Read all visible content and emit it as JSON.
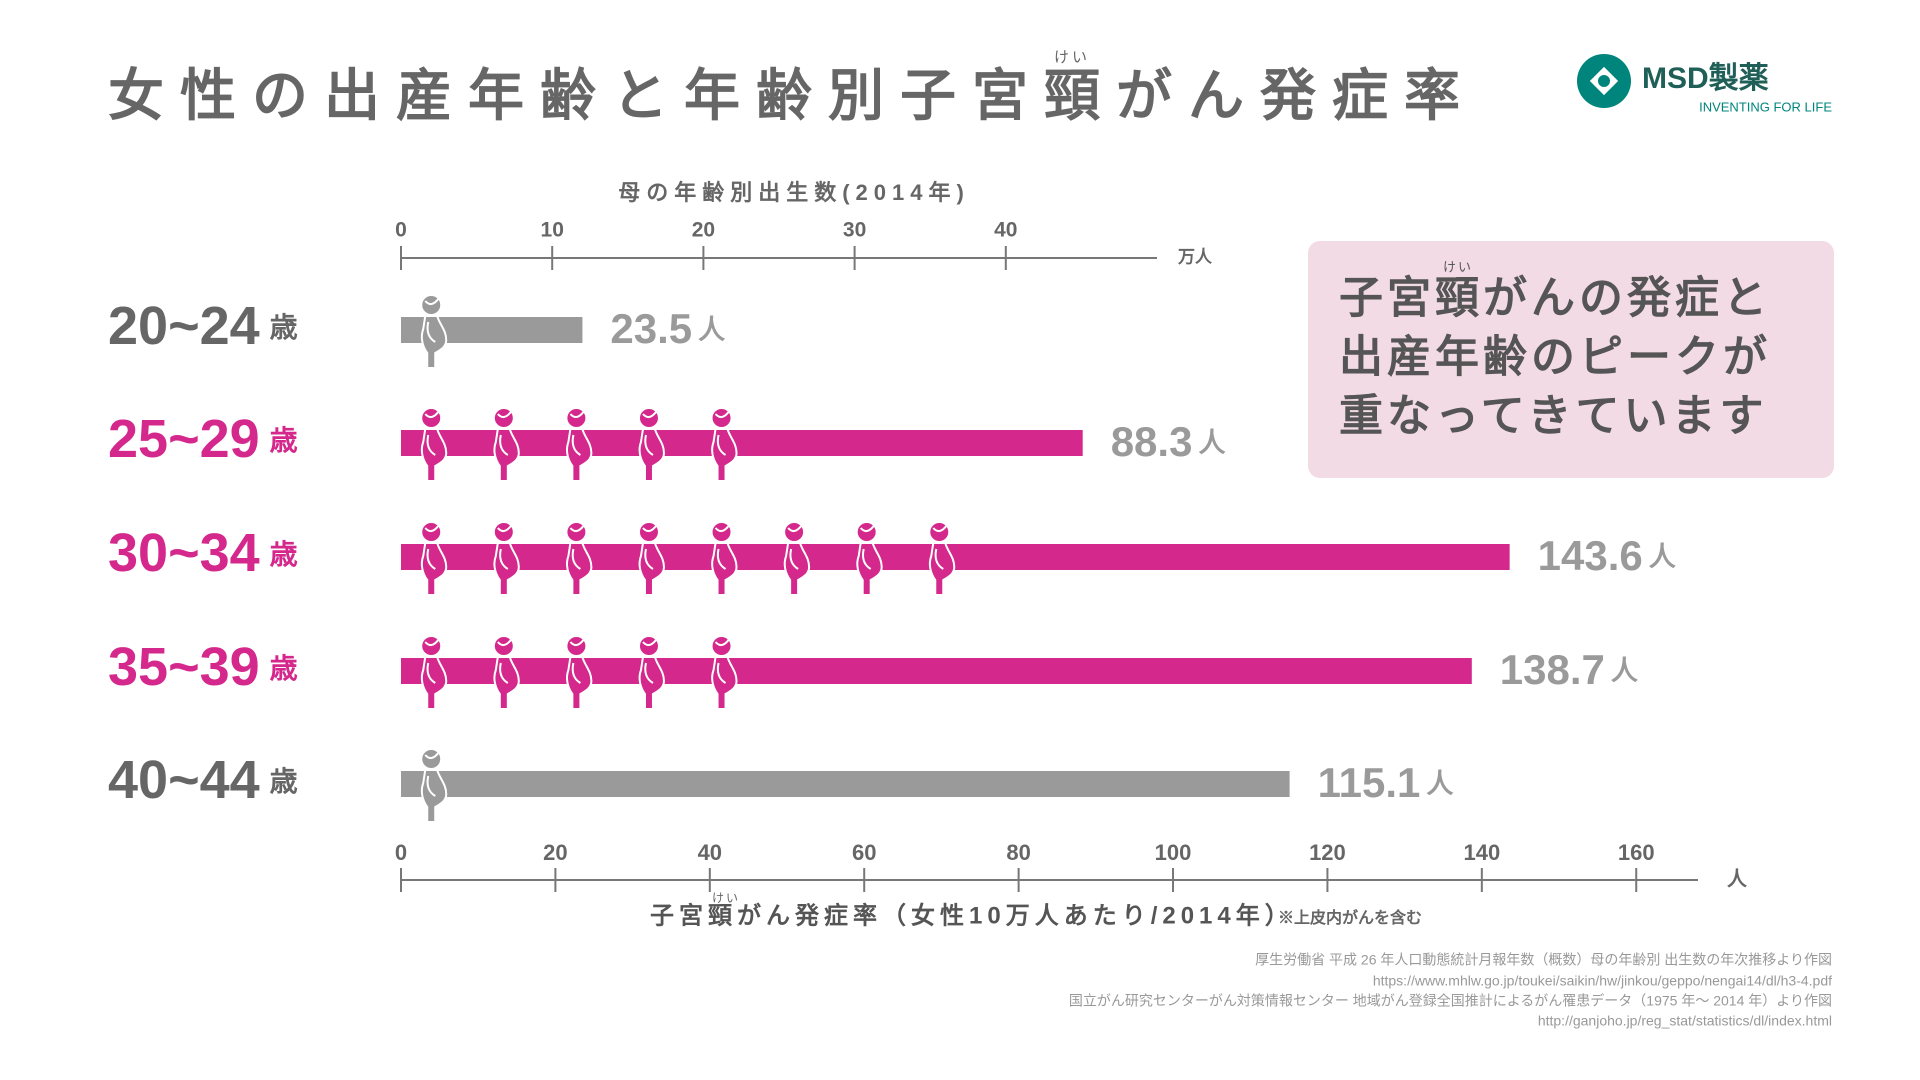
{
  "title": "女性の出産年齢と年齢別子宮頸がん発症率",
  "title_ruby": "けい",
  "logo": {
    "name": "MSD製薬",
    "tagline": "INVENTING FOR LIFE"
  },
  "callout": {
    "lines": [
      "子宮頸がんの発症と",
      "出産年齢のピークが",
      "重なってきています"
    ],
    "ruby": "けい"
  },
  "sources": [
    "厚生労働省 平成 26 年人口動態統計月報年数（概数）母の年齢別 出生数の年次推移より作図",
    "https://www.mhlw.go.jp/toukei/saikin/hw/jinkou/geppo/nengai14/dl/h3-4.pdf",
    "国立がん研究センターがん対策情報センター 地域がん登録全国推計によるがん罹患データ（1975 年〜 2014 年）より作図",
    "http://ganjoho.jp/reg_stat/statistics/dl/index.html"
  ],
  "chart_data": {
    "type": "bar",
    "categories": [
      "20~24",
      "25~29",
      "30~34",
      "35~39",
      "40~44"
    ],
    "category_unit": "歳",
    "highlight": [
      false,
      true,
      true,
      true,
      false
    ],
    "highlight_color": "#d4288c",
    "muted_color": "#9a9a9a",
    "label_muted_color": "#666666",
    "values": [
      23.5,
      88.3,
      143.6,
      138.7,
      115.1
    ],
    "value_unit": "人",
    "xlabel": "子宮頸がん発症率（女性10万人あたり/2014年）",
    "xlabel_ruby": "けい",
    "xlabel_note": "※上皮内がんを含む",
    "xunit": "人",
    "xlim": [
      0,
      168
    ],
    "xticks": [
      0,
      20,
      40,
      60,
      80,
      100,
      120,
      140,
      160
    ],
    "births": {
      "name": "母の年齢別出生数(2014年)",
      "unit": "万人",
      "values": [
        3,
        23,
        37,
        23,
        3
      ],
      "xlim": [
        0,
        50
      ],
      "xticks": [
        0,
        10,
        20,
        30,
        40
      ]
    }
  }
}
